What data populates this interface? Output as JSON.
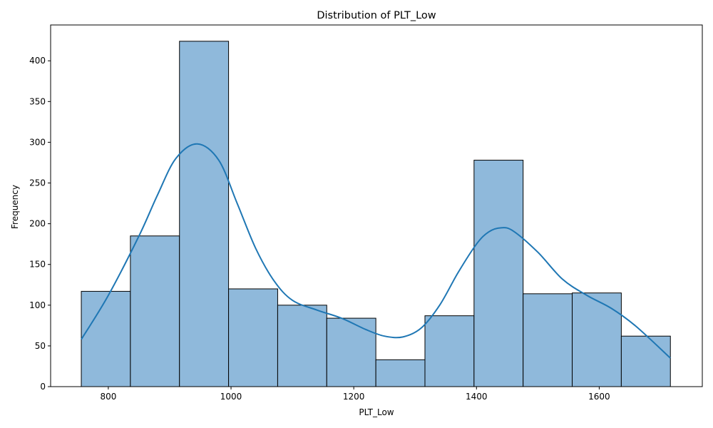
{
  "chart_data": {
    "type": "bar",
    "title": "Distribution of PLT_Low",
    "xlabel": "PLT_Low",
    "ylabel": "Frequency",
    "xlim": [
      706,
      1768
    ],
    "ylim": [
      0,
      444
    ],
    "xticks": [
      800,
      1000,
      1200,
      1400,
      1600
    ],
    "yticks": [
      0,
      50,
      100,
      150,
      200,
      250,
      300,
      350,
      400
    ],
    "bins": [
      {
        "x0": 756,
        "x1": 836,
        "count": 117
      },
      {
        "x0": 836,
        "x1": 916,
        "count": 185
      },
      {
        "x0": 916,
        "x1": 996,
        "count": 424
      },
      {
        "x0": 996,
        "x1": 1076,
        "count": 120
      },
      {
        "x0": 1076,
        "x1": 1156,
        "count": 100
      },
      {
        "x0": 1156,
        "x1": 1236,
        "count": 84
      },
      {
        "x0": 1236,
        "x1": 1316,
        "count": 33
      },
      {
        "x0": 1316,
        "x1": 1396,
        "count": 87
      },
      {
        "x0": 1396,
        "x1": 1476,
        "count": 278
      },
      {
        "x0": 1476,
        "x1": 1556,
        "count": 114
      },
      {
        "x0": 1556,
        "x1": 1636,
        "count": 115
      },
      {
        "x0": 1636,
        "x1": 1716,
        "count": 62
      }
    ],
    "kde": [
      {
        "x": 756,
        "y": 58
      },
      {
        "x": 800,
        "y": 112
      },
      {
        "x": 850,
        "y": 185
      },
      {
        "x": 880,
        "y": 235
      },
      {
        "x": 910,
        "y": 280
      },
      {
        "x": 945,
        "y": 298
      },
      {
        "x": 980,
        "y": 278
      },
      {
        "x": 1010,
        "y": 225
      },
      {
        "x": 1040,
        "y": 170
      },
      {
        "x": 1070,
        "y": 130
      },
      {
        "x": 1100,
        "y": 106
      },
      {
        "x": 1140,
        "y": 94
      },
      {
        "x": 1180,
        "y": 84
      },
      {
        "x": 1220,
        "y": 70
      },
      {
        "x": 1250,
        "y": 62
      },
      {
        "x": 1280,
        "y": 61
      },
      {
        "x": 1310,
        "y": 72
      },
      {
        "x": 1340,
        "y": 100
      },
      {
        "x": 1370,
        "y": 140
      },
      {
        "x": 1400,
        "y": 175
      },
      {
        "x": 1420,
        "y": 190
      },
      {
        "x": 1440,
        "y": 195
      },
      {
        "x": 1460,
        "y": 191
      },
      {
        "x": 1500,
        "y": 165
      },
      {
        "x": 1540,
        "y": 132
      },
      {
        "x": 1580,
        "y": 112
      },
      {
        "x": 1620,
        "y": 96
      },
      {
        "x": 1660,
        "y": 74
      },
      {
        "x": 1716,
        "y": 35
      }
    ],
    "bar_color": "#8fb9db",
    "bar_edge_color": "#000000",
    "line_color": "#1f77b4",
    "grid": false,
    "legend": "none"
  }
}
